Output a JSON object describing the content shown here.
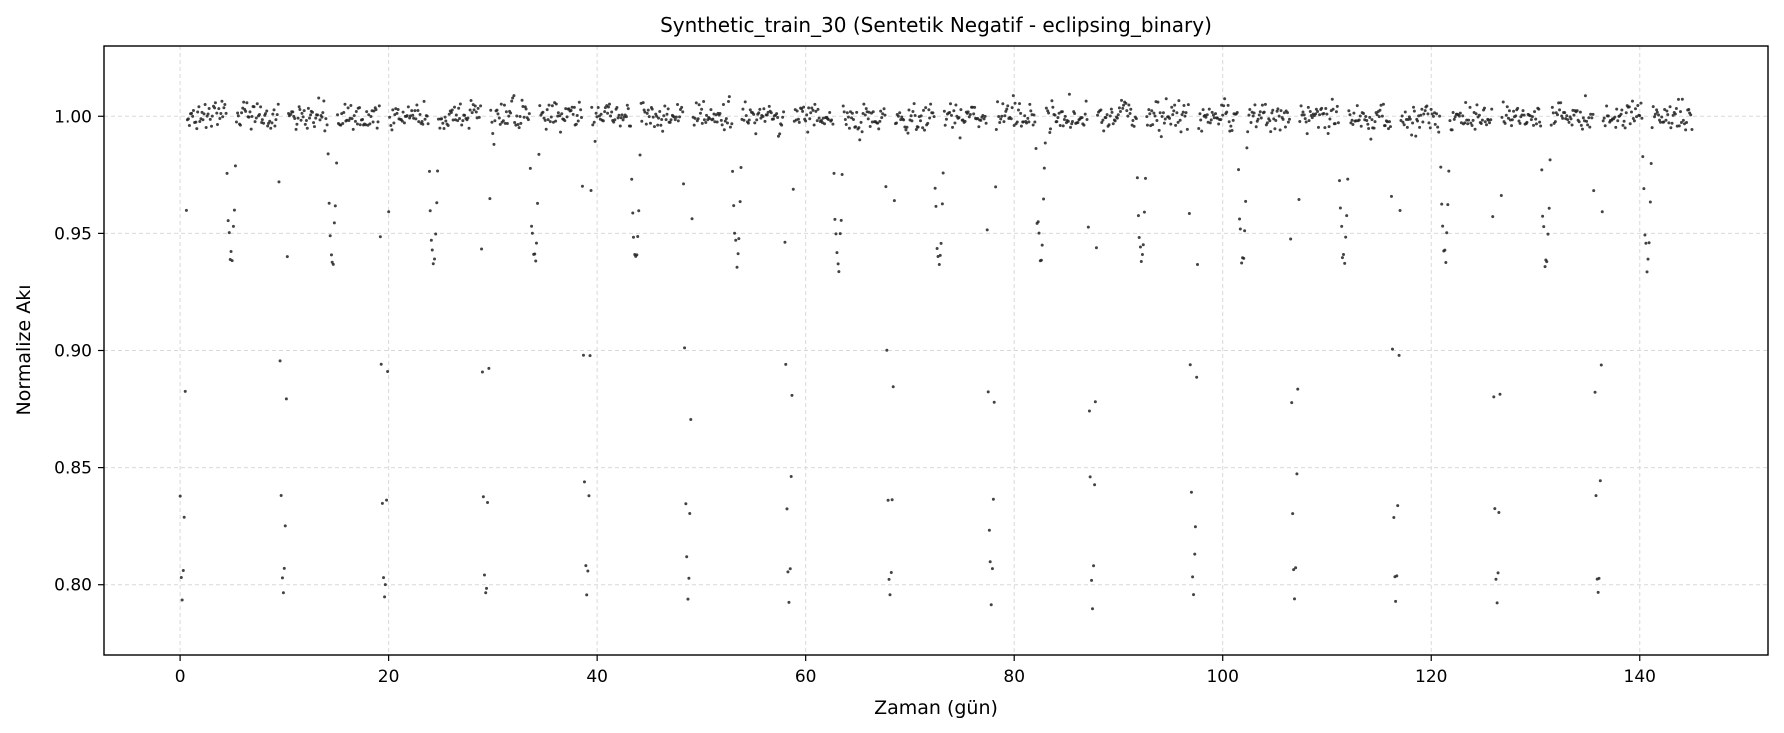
{
  "chart_data": {
    "type": "scatter",
    "title": "Synthetic_train_30 (Sentetik Negatif - eclipsing_binary)",
    "xlabel": "Zaman (gün)",
    "ylabel": "Normalize Akı",
    "xlim": [
      -7.3,
      152.3
    ],
    "ylim": [
      0.77,
      1.03
    ],
    "xticks": [
      0,
      20,
      40,
      60,
      80,
      100,
      120,
      140
    ],
    "yticks": [
      0.8,
      0.85,
      0.9,
      0.95,
      1.0
    ],
    "ytick_labels": [
      "0.80",
      "0.85",
      "0.90",
      "0.95",
      "1.00"
    ],
    "grid": true,
    "marker_color": "#222222",
    "series": [
      {
        "x_range": [
          0.0,
          145.0
        ],
        "baseline_flux": 1.0,
        "noise_std": 0.003,
        "sampling_interval": 0.1,
        "primary_eclipse": {
          "period": 9.7,
          "first_epoch": 0.2,
          "depth": 0.205,
          "half_width": 0.45
        },
        "secondary_eclipse": {
          "period": 9.7,
          "first_epoch": 4.9,
          "depth": 0.062,
          "half_width": 0.5
        }
      }
    ]
  }
}
